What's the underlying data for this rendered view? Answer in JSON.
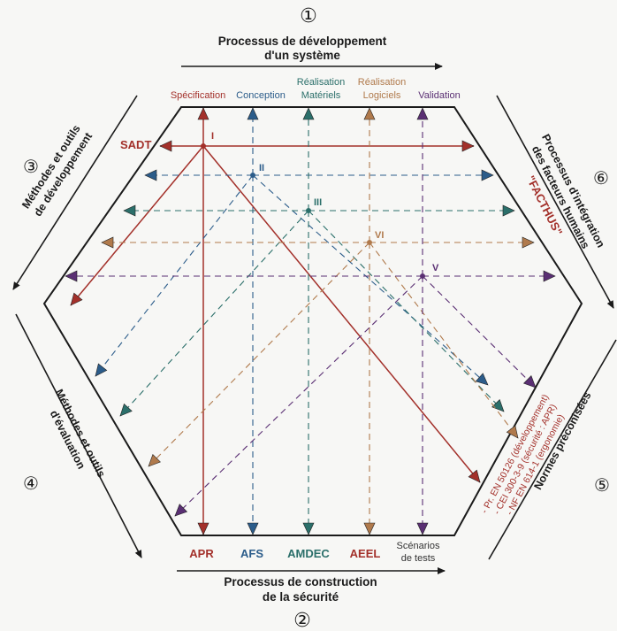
{
  "colors": {
    "ink": "#1a1a1a",
    "red": "#a3302a",
    "blue": "#2b5c8a",
    "teal": "#2b6f6a",
    "orange": "#b07a4c",
    "purple": "#5a2f73",
    "gray": "#555555"
  },
  "top": {
    "number": "①",
    "line1": "Processus de développement",
    "line2": "d'un système"
  },
  "bottom": {
    "number": "②",
    "line1": "Processus de construction",
    "line2": "de la sécurité"
  },
  "left_top": {
    "number": "③",
    "line1": "Méthodes et outils",
    "line2": "de développement"
  },
  "left_bottom": {
    "number": "④",
    "line1": "Méthodes et outils",
    "line2": "d'évaluation"
  },
  "right_top": {
    "number": "⑥",
    "line1": "Processus d'intégration",
    "line2": "des facteurs humains",
    "name": "\"FACTHUS\""
  },
  "right_bottom": {
    "number": "⑤",
    "line1": "Normes préconisées"
  },
  "phases": {
    "spec": "Spécification",
    "conception": "Conception",
    "mat1": "Réalisation",
    "mat2": "Matériels",
    "log1": "Réalisation",
    "log2": "Logiciels",
    "validation": "Validation"
  },
  "safety": {
    "apr": "APR",
    "afs": "AFS",
    "amdec": "AMDEC",
    "aeel": "AEEL",
    "tests1": "Scénarios",
    "tests2": "de tests"
  },
  "method": "SADT",
  "nodes": {
    "n1": "I",
    "n2": "II",
    "n3": "III",
    "n4": "VI",
    "n5": "V"
  },
  "norms": [
    "- Pr. EN 50126 (développement)",
    "- CEI 300-3-9 (sécurité : APR)",
    "- NF EN 614-1 (ergonomie)"
  ]
}
